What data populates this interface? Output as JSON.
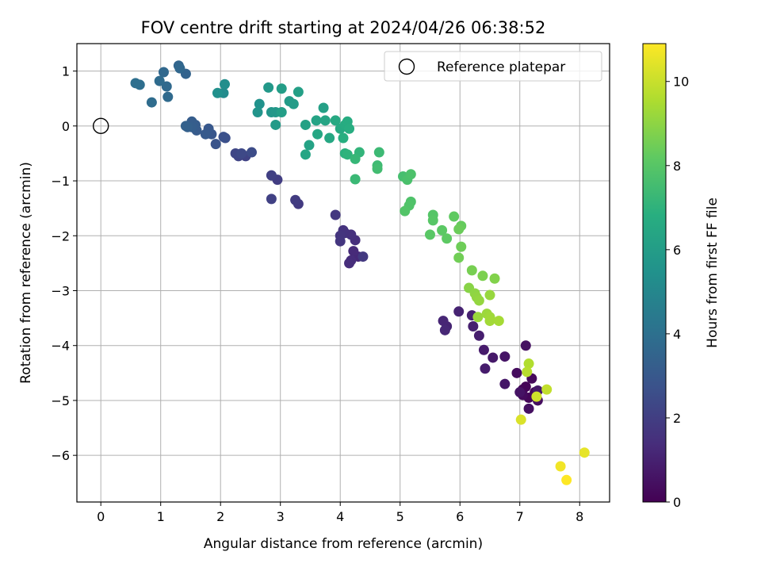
{
  "chart_data": {
    "type": "scatter",
    "title": "FOV centre drift starting at 2024/04/26 06:38:52",
    "xlabel": "Angular distance from reference (arcmin)",
    "ylabel": "Rotation from reference (arcmin)",
    "xlim": [
      -0.4,
      8.5
    ],
    "ylim": [
      -6.85,
      1.5
    ],
    "xticks": [
      0,
      1,
      2,
      3,
      4,
      5,
      6,
      7,
      8
    ],
    "yticks": [
      -6,
      -5,
      -4,
      -3,
      -2,
      -1,
      0,
      1
    ],
    "grid": true,
    "legend": {
      "entry": "Reference platepar",
      "placement": "top-right"
    },
    "reference_point": {
      "x": 0,
      "y": 0
    },
    "colorbar": {
      "label": "Hours from first FF file",
      "range": [
        0,
        10.9
      ],
      "ticks": [
        0,
        2,
        4,
        6,
        8,
        10
      ],
      "colormap": "viridis"
    },
    "points": [
      {
        "x": 7.05,
        "y": -4.8,
        "h": 0.05
      },
      {
        "x": 7.1,
        "y": -4.75,
        "h": 0.1
      },
      {
        "x": 7.15,
        "y": -4.95,
        "h": 0.15
      },
      {
        "x": 7.25,
        "y": -4.85,
        "h": 0.2
      },
      {
        "x": 7.2,
        "y": -4.6,
        "h": 0.25
      },
      {
        "x": 7.05,
        "y": -4.9,
        "h": 0.3
      },
      {
        "x": 6.95,
        "y": -4.5,
        "h": 0.35
      },
      {
        "x": 7.3,
        "y": -5.0,
        "h": 0.4
      },
      {
        "x": 7.15,
        "y": -5.15,
        "h": 0.45
      },
      {
        "x": 7.1,
        "y": -4.0,
        "h": 0.5
      },
      {
        "x": 7.0,
        "y": -4.85,
        "h": 0.55
      },
      {
        "x": 6.75,
        "y": -4.2,
        "h": 0.6
      },
      {
        "x": 6.75,
        "y": -4.7,
        "h": 0.65
      },
      {
        "x": 7.3,
        "y": -4.82,
        "h": 0.7
      },
      {
        "x": 6.55,
        "y": -4.22,
        "h": 0.75
      },
      {
        "x": 6.4,
        "y": -4.08,
        "h": 0.8
      },
      {
        "x": 6.42,
        "y": -4.42,
        "h": 0.85
      },
      {
        "x": 6.32,
        "y": -3.82,
        "h": 0.9
      },
      {
        "x": 6.22,
        "y": -3.65,
        "h": 0.95
      },
      {
        "x": 6.2,
        "y": -3.45,
        "h": 1.0
      },
      {
        "x": 5.98,
        "y": -3.38,
        "h": 1.05
      },
      {
        "x": 5.78,
        "y": -3.65,
        "h": 1.1
      },
      {
        "x": 5.72,
        "y": -3.55,
        "h": 1.15
      },
      {
        "x": 5.75,
        "y": -3.72,
        "h": 1.2
      },
      {
        "x": 4.3,
        "y": -2.38,
        "h": 1.25
      },
      {
        "x": 4.22,
        "y": -2.28,
        "h": 1.3
      },
      {
        "x": 4.18,
        "y": -2.45,
        "h": 1.35
      },
      {
        "x": 4.15,
        "y": -2.5,
        "h": 1.4
      },
      {
        "x": 4.25,
        "y": -2.08,
        "h": 1.45
      },
      {
        "x": 4.18,
        "y": -1.98,
        "h": 1.5
      },
      {
        "x": 4.08,
        "y": -1.95,
        "h": 1.55
      },
      {
        "x": 4.05,
        "y": -1.9,
        "h": 1.6
      },
      {
        "x": 4.0,
        "y": -2.0,
        "h": 1.65
      },
      {
        "x": 4.0,
        "y": -2.1,
        "h": 1.7
      },
      {
        "x": 3.92,
        "y": -1.62,
        "h": 1.75
      },
      {
        "x": 4.38,
        "y": -2.38,
        "h": 1.8
      },
      {
        "x": 3.3,
        "y": -1.42,
        "h": 1.85
      },
      {
        "x": 3.25,
        "y": -1.35,
        "h": 1.9
      },
      {
        "x": 2.95,
        "y": -0.98,
        "h": 1.95
      },
      {
        "x": 2.85,
        "y": -0.9,
        "h": 2.05
      },
      {
        "x": 2.85,
        "y": -1.33,
        "h": 2.1
      },
      {
        "x": 2.42,
        "y": -0.55,
        "h": 2.15
      },
      {
        "x": 2.3,
        "y": -0.55,
        "h": 2.2
      },
      {
        "x": 2.25,
        "y": -0.5,
        "h": 2.3
      },
      {
        "x": 2.35,
        "y": -0.5,
        "h": 2.4
      },
      {
        "x": 2.52,
        "y": -0.48,
        "h": 2.5
      },
      {
        "x": 2.08,
        "y": -0.22,
        "h": 2.6
      },
      {
        "x": 2.05,
        "y": -0.2,
        "h": 2.7
      },
      {
        "x": 1.92,
        "y": -0.33,
        "h": 2.8
      },
      {
        "x": 1.85,
        "y": -0.15,
        "h": 2.9
      },
      {
        "x": 1.8,
        "y": -0.05,
        "h": 3.0
      },
      {
        "x": 1.75,
        "y": -0.15,
        "h": 3.05
      },
      {
        "x": 1.6,
        "y": -0.08,
        "h": 3.1
      },
      {
        "x": 1.58,
        "y": 0.02,
        "h": 3.15
      },
      {
        "x": 1.52,
        "y": 0.08,
        "h": 3.2
      },
      {
        "x": 1.52,
        "y": -0.02,
        "h": 3.25
      },
      {
        "x": 1.45,
        "y": -0.02,
        "h": 3.3
      },
      {
        "x": 1.42,
        "y": 0.0,
        "h": 3.35
      },
      {
        "x": 1.42,
        "y": 0.95,
        "h": 3.45
      },
      {
        "x": 1.3,
        "y": 1.1,
        "h": 3.55
      },
      {
        "x": 1.32,
        "y": 1.05,
        "h": 3.6
      },
      {
        "x": 1.05,
        "y": 0.98,
        "h": 3.65
      },
      {
        "x": 1.1,
        "y": 0.72,
        "h": 3.7
      },
      {
        "x": 1.12,
        "y": 0.53,
        "h": 3.75
      },
      {
        "x": 0.98,
        "y": 0.82,
        "h": 3.8
      },
      {
        "x": 0.85,
        "y": 0.43,
        "h": 3.85
      },
      {
        "x": 0.65,
        "y": 0.75,
        "h": 3.9
      },
      {
        "x": 0.58,
        "y": 0.78,
        "h": 3.95
      },
      {
        "x": 2.05,
        "y": 0.6,
        "h": 5.2
      },
      {
        "x": 2.07,
        "y": 0.76,
        "h": 5.3
      },
      {
        "x": 1.95,
        "y": 0.6,
        "h": 5.4
      },
      {
        "x": 2.65,
        "y": 0.4,
        "h": 5.5
      },
      {
        "x": 2.62,
        "y": 0.25,
        "h": 5.6
      },
      {
        "x": 2.85,
        "y": 0.25,
        "h": 5.7
      },
      {
        "x": 2.92,
        "y": 0.25,
        "h": 5.75
      },
      {
        "x": 2.8,
        "y": 0.7,
        "h": 5.8
      },
      {
        "x": 2.92,
        "y": 0.02,
        "h": 5.85
      },
      {
        "x": 3.15,
        "y": 0.45,
        "h": 5.9
      },
      {
        "x": 3.22,
        "y": 0.4,
        "h": 5.95
      },
      {
        "x": 3.02,
        "y": 0.68,
        "h": 6.0
      },
      {
        "x": 3.02,
        "y": 0.25,
        "h": 6.05
      },
      {
        "x": 3.3,
        "y": 0.62,
        "h": 6.1
      },
      {
        "x": 3.72,
        "y": 0.33,
        "h": 6.15
      },
      {
        "x": 3.42,
        "y": 0.02,
        "h": 6.2
      },
      {
        "x": 3.48,
        "y": -0.35,
        "h": 6.25
      },
      {
        "x": 3.6,
        "y": 0.1,
        "h": 6.3
      },
      {
        "x": 3.75,
        "y": 0.1,
        "h": 6.35
      },
      {
        "x": 3.42,
        "y": -0.52,
        "h": 6.4
      },
      {
        "x": 3.62,
        "y": -0.15,
        "h": 6.45
      },
      {
        "x": 3.82,
        "y": -0.22,
        "h": 6.5
      },
      {
        "x": 3.92,
        "y": 0.1,
        "h": 6.55
      },
      {
        "x": 4.0,
        "y": -0.05,
        "h": 6.6
      },
      {
        "x": 4.08,
        "y": 0.02,
        "h": 6.65
      },
      {
        "x": 4.12,
        "y": 0.08,
        "h": 6.7
      },
      {
        "x": 4.15,
        "y": -0.05,
        "h": 6.75
      },
      {
        "x": 4.05,
        "y": -0.22,
        "h": 6.8
      },
      {
        "x": 4.08,
        "y": -0.5,
        "h": 6.9
      },
      {
        "x": 4.12,
        "y": -0.52,
        "h": 7.0
      },
      {
        "x": 4.32,
        "y": -0.48,
        "h": 7.1
      },
      {
        "x": 4.25,
        "y": -0.6,
        "h": 7.2
      },
      {
        "x": 4.25,
        "y": -0.97,
        "h": 7.3
      },
      {
        "x": 4.65,
        "y": -0.48,
        "h": 7.35
      },
      {
        "x": 4.62,
        "y": -0.72,
        "h": 7.4
      },
      {
        "x": 4.62,
        "y": -0.78,
        "h": 7.5
      },
      {
        "x": 5.05,
        "y": -0.92,
        "h": 7.6
      },
      {
        "x": 5.12,
        "y": -0.98,
        "h": 7.7
      },
      {
        "x": 5.18,
        "y": -0.88,
        "h": 7.75
      },
      {
        "x": 5.18,
        "y": -1.38,
        "h": 7.8
      },
      {
        "x": 5.15,
        "y": -1.45,
        "h": 7.85
      },
      {
        "x": 5.08,
        "y": -1.55,
        "h": 7.9
      },
      {
        "x": 5.55,
        "y": -1.62,
        "h": 7.95
      },
      {
        "x": 5.55,
        "y": -1.72,
        "h": 8.0
      },
      {
        "x": 5.5,
        "y": -1.98,
        "h": 8.05
      },
      {
        "x": 5.7,
        "y": -1.9,
        "h": 8.1
      },
      {
        "x": 5.78,
        "y": -2.05,
        "h": 8.15
      },
      {
        "x": 5.9,
        "y": -1.65,
        "h": 8.2
      },
      {
        "x": 6.02,
        "y": -1.82,
        "h": 8.3
      },
      {
        "x": 5.98,
        "y": -1.88,
        "h": 8.4
      },
      {
        "x": 6.02,
        "y": -2.2,
        "h": 8.45
      },
      {
        "x": 5.98,
        "y": -2.4,
        "h": 8.5
      },
      {
        "x": 6.2,
        "y": -2.63,
        "h": 8.6
      },
      {
        "x": 6.38,
        "y": -2.73,
        "h": 8.7
      },
      {
        "x": 6.58,
        "y": -2.78,
        "h": 8.8
      },
      {
        "x": 6.15,
        "y": -2.95,
        "h": 8.9
      },
      {
        "x": 6.25,
        "y": -3.05,
        "h": 9.0
      },
      {
        "x": 6.28,
        "y": -3.12,
        "h": 9.05
      },
      {
        "x": 6.32,
        "y": -3.18,
        "h": 9.1
      },
      {
        "x": 6.5,
        "y": -3.08,
        "h": 9.15
      },
      {
        "x": 6.3,
        "y": -3.48,
        "h": 9.2
      },
      {
        "x": 6.45,
        "y": -3.42,
        "h": 9.25
      },
      {
        "x": 6.5,
        "y": -3.48,
        "h": 9.3
      },
      {
        "x": 6.5,
        "y": -3.55,
        "h": 9.35
      },
      {
        "x": 6.65,
        "y": -3.55,
        "h": 9.4
      },
      {
        "x": 7.15,
        "y": -4.33,
        "h": 9.6
      },
      {
        "x": 7.12,
        "y": -4.48,
        "h": 9.7
      },
      {
        "x": 7.45,
        "y": -4.8,
        "h": 9.9
      },
      {
        "x": 7.28,
        "y": -4.93,
        "h": 10.1
      },
      {
        "x": 7.02,
        "y": -5.35,
        "h": 10.3
      },
      {
        "x": 8.08,
        "y": -5.95,
        "h": 10.5
      },
      {
        "x": 7.68,
        "y": -6.2,
        "h": 10.7
      },
      {
        "x": 7.78,
        "y": -6.45,
        "h": 10.9
      }
    ]
  }
}
